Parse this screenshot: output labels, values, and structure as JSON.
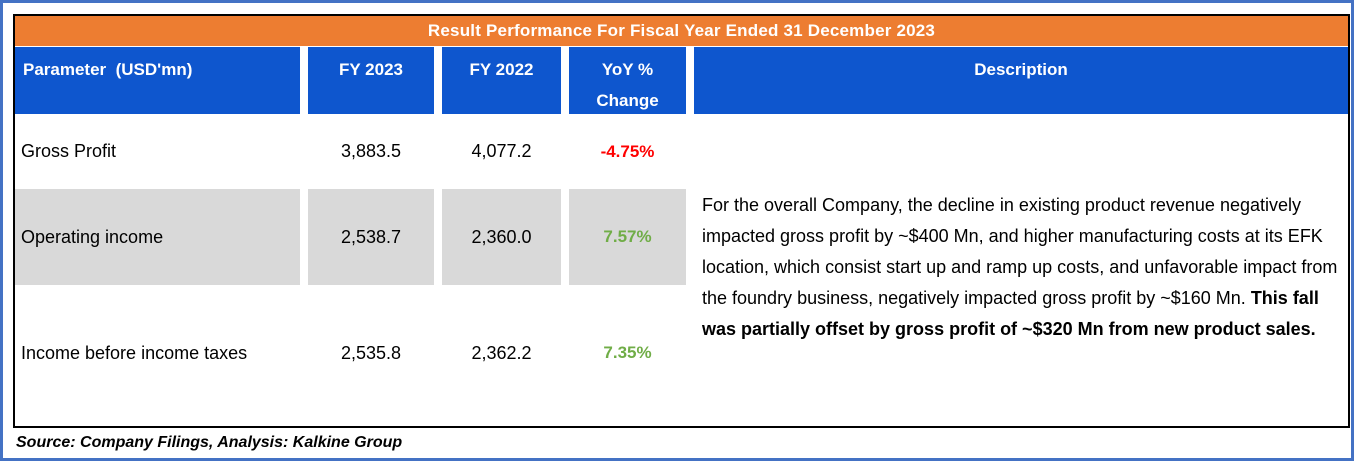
{
  "title": "Result Performance For Fiscal Year Ended 31 December 2023",
  "table": {
    "headers": {
      "parameter": "Parameter  (USD'mn)",
      "fy2023": "FY 2023",
      "fy2022": "FY 2022",
      "yoy": "YoY % Change",
      "description": "Description"
    },
    "rows": [
      {
        "parameter": "Gross Profit",
        "fy2023": "3,883.5",
        "fy2022": "4,077.2",
        "yoy": "-4.75%",
        "yoy_color": "#FF0000"
      },
      {
        "parameter": "Operating income",
        "fy2023": "2,538.7",
        "fy2022": "2,360.0",
        "yoy": "7.57%",
        "yoy_color": "#70AD47"
      },
      {
        "parameter": "Income before income taxes",
        "fy2023": "2,535.8",
        "fy2022": "2,362.2",
        "yoy": "7.35%",
        "yoy_color": "#70AD47"
      }
    ],
    "description": {
      "normal": "For the overall Company, the decline in existing product revenue negatively impacted gross profit by ~$400 Mn, and higher manufacturing costs at its EFK location, which consist start up and ramp up costs, and unfavorable impact from the foundry business, negatively impacted gross profit by ~$160 Mn. ",
      "bold": "This fall was partially offset by gross profit of ~$320 Mn from new product sales."
    }
  },
  "source": "Source: Company Filings, Analysis: Kalkine Group",
  "colors": {
    "title_orange": "#ED7D31",
    "header_blue": "#0E56CE",
    "row_gray": "#D9D9D9",
    "negative_red": "#FF0000",
    "positive_green": "#70AD47",
    "outer_border_blue": "#4472C4",
    "table_border_black": "#000000"
  },
  "chart_data": {
    "type": "table",
    "title": "Result Performance For Fiscal Year Ended 31 December 2023",
    "columns": [
      "Parameter  (USD'mn)",
      "FY 2023",
      "FY 2022",
      "YoY % Change",
      "Description"
    ],
    "rows": [
      {
        "parameter": "Gross Profit",
        "fy2023": 3883.5,
        "fy2022": 4077.2,
        "yoy_pct_change": -4.75
      },
      {
        "parameter": "Operating income",
        "fy2023": 2538.7,
        "fy2022": 2360.0,
        "yoy_pct_change": 7.57
      },
      {
        "parameter": "Income before income taxes",
        "fy2023": 2535.8,
        "fy2022": 2362.2,
        "yoy_pct_change": 7.35
      }
    ],
    "units": "USD'mn",
    "description": "For the overall Company, the decline in existing product revenue negatively impacted gross profit by ~$400 Mn, and higher manufacturing costs at its EFK location, which consist start up and ramp up costs, and unfavorable impact from the foundry business, negatively impacted gross profit by ~$160 Mn. This fall was partially offset by gross profit of ~$320 Mn from new product sales.",
    "source_note": "Source: Company Filings, Analysis: Kalkine Group"
  }
}
